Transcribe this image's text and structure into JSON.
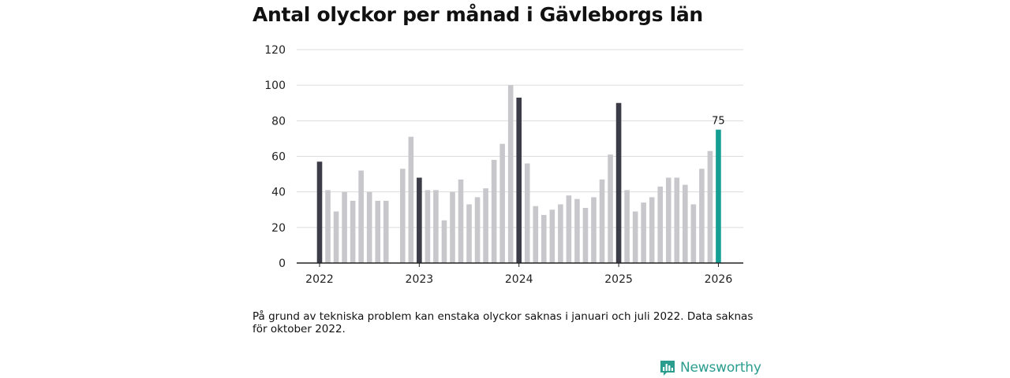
{
  "title": "Antal olyckor per månad i Gävleborgs län",
  "note": "På grund av tekniska problem kan enstaka olyckor saknas i januari och juli 2022. Data saknas för oktober 2022.",
  "brand": {
    "name": "Newsworthy",
    "icon": "newsworthy-logo-icon",
    "color": "#2a9d8f"
  },
  "colors": {
    "regular": "#c8c8cc",
    "january": "#3c3c48",
    "latest": "#159e94",
    "grid": "#dcdcdc",
    "axis": "#222222"
  },
  "chart_data": {
    "type": "bar",
    "title": "Antal olyckor per månad i Gävleborgs län",
    "xlabel": "",
    "ylabel": "",
    "ylim": [
      0,
      120
    ],
    "yticks": [
      0,
      20,
      40,
      60,
      80,
      100,
      120
    ],
    "xticks": [
      "2022",
      "2023",
      "2024",
      "2025",
      "2026"
    ],
    "grid": true,
    "categories": [
      "2022-01",
      "2022-02",
      "2022-03",
      "2022-04",
      "2022-05",
      "2022-06",
      "2022-07",
      "2022-08",
      "2022-09",
      "2022-10",
      "2022-11",
      "2022-12",
      "2023-01",
      "2023-02",
      "2023-03",
      "2023-04",
      "2023-05",
      "2023-06",
      "2023-07",
      "2023-08",
      "2023-09",
      "2023-10",
      "2023-11",
      "2023-12",
      "2024-01",
      "2024-02",
      "2024-03",
      "2024-04",
      "2024-05",
      "2024-06",
      "2024-07",
      "2024-08",
      "2024-09",
      "2024-10",
      "2024-11",
      "2024-12",
      "2025-01",
      "2025-02",
      "2025-03",
      "2025-04",
      "2025-05",
      "2025-06",
      "2025-07",
      "2025-08",
      "2025-09",
      "2025-10",
      "2025-11",
      "2025-12",
      "2026-01"
    ],
    "values": [
      57,
      41,
      29,
      40,
      35,
      52,
      40,
      35,
      35,
      null,
      53,
      71,
      48,
      41,
      41,
      24,
      40,
      47,
      33,
      37,
      42,
      58,
      67,
      100,
      93,
      56,
      32,
      27,
      30,
      33,
      38,
      36,
      31,
      37,
      47,
      61,
      90,
      41,
      29,
      34,
      37,
      43,
      48,
      48,
      44,
      33,
      53,
      63,
      75
    ],
    "annotations": [
      {
        "category": "2026-01",
        "label": "75"
      }
    ]
  }
}
